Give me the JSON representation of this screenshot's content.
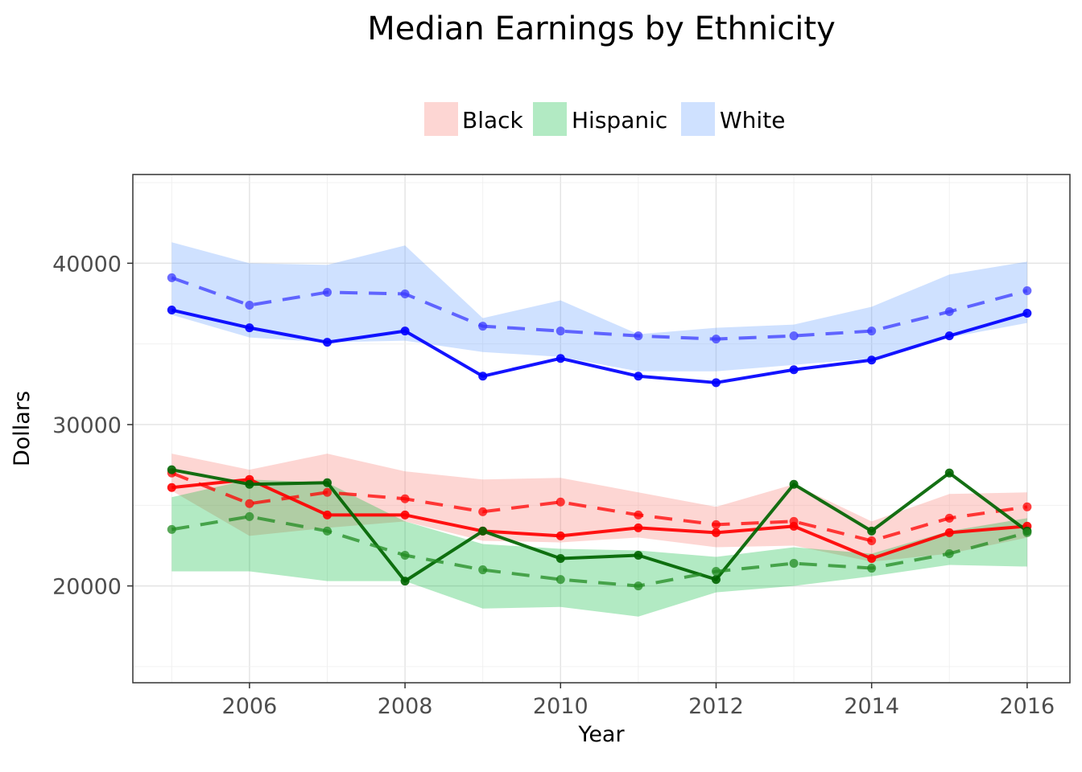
{
  "chart_data": {
    "type": "line",
    "title": "Median Earnings by Ethnicity",
    "xlabel": "Year",
    "ylabel": "Dollars",
    "xlim": [
      2004.5,
      2016.55
    ],
    "ylim": [
      14000,
      45500
    ],
    "x_ticks": [
      2006,
      2008,
      2010,
      2012,
      2014,
      2016
    ],
    "x_tick_labels": [
      "2006",
      "2008",
      "2010",
      "2012",
      "2014",
      "2016"
    ],
    "y_ticks": [
      20000,
      30000,
      40000
    ],
    "y_tick_labels": [
      "20000",
      "30000",
      "40000"
    ],
    "grid": true,
    "legend_position": "top",
    "legend": [
      {
        "label": "Black",
        "fill": "#f8766d"
      },
      {
        "label": "Hispanic",
        "fill": "#00ba38"
      },
      {
        "label": "White",
        "fill": "#619cff"
      }
    ],
    "x": [
      2005,
      2006,
      2007,
      2008,
      2009,
      2010,
      2011,
      2012,
      2013,
      2014,
      2015,
      2016
    ],
    "bands": [
      {
        "group": "Black",
        "fill": "#f8766d",
        "upper": [
          28200,
          27200,
          28200,
          27100,
          26600,
          26700,
          25800,
          24900,
          26300,
          24000,
          25700,
          25800
        ],
        "lower": [
          25900,
          23100,
          23600,
          24000,
          22800,
          22700,
          23000,
          22400,
          22500,
          21500,
          22000,
          23000
        ]
      },
      {
        "group": "Hispanic",
        "fill": "#00ba38",
        "upper": [
          25500,
          26600,
          26400,
          24000,
          22600,
          22300,
          22200,
          21800,
          22400,
          22000,
          23400,
          24200
        ],
        "lower": [
          20900,
          20900,
          20300,
          20300,
          18600,
          18700,
          18100,
          19600,
          20000,
          20600,
          21300,
          21200
        ]
      },
      {
        "group": "White",
        "fill": "#619cff",
        "upper": [
          41300,
          40000,
          39900,
          41100,
          36600,
          37700,
          35600,
          36000,
          36200,
          37300,
          39300,
          40100
        ],
        "lower": [
          36800,
          35400,
          35100,
          35200,
          34500,
          34200,
          33300,
          33300,
          33700,
          34100,
          35400,
          36300
        ]
      }
    ],
    "series": [
      {
        "group": "Black",
        "style": "solid",
        "color": "#ff0000",
        "values": [
          26100,
          26600,
          24400,
          24400,
          23400,
          23100,
          23600,
          23300,
          23700,
          21700,
          23300,
          23700
        ]
      },
      {
        "group": "Black",
        "style": "dashed",
        "color": "#ff0000",
        "values": [
          27000,
          25100,
          25800,
          25400,
          24600,
          25200,
          24400,
          23800,
          24000,
          22800,
          24200,
          24900
        ]
      },
      {
        "group": "Hispanic",
        "style": "solid",
        "color": "#006400",
        "values": [
          27200,
          26300,
          26400,
          20300,
          23400,
          21700,
          21900,
          20400,
          26300,
          23400,
          27000,
          23400
        ]
      },
      {
        "group": "Hispanic",
        "style": "dashed",
        "color": "#228b22",
        "values": [
          23500,
          24300,
          23400,
          21900,
          21000,
          20400,
          20000,
          20900,
          21400,
          21100,
          22000,
          23300
        ]
      },
      {
        "group": "White",
        "style": "solid",
        "color": "#0000ff",
        "values": [
          37100,
          36000,
          35100,
          35800,
          33000,
          34100,
          33000,
          32600,
          33400,
          34000,
          35500,
          36900
        ]
      },
      {
        "group": "White",
        "style": "dashed",
        "color": "#3a3aff",
        "values": [
          39100,
          37400,
          38200,
          38100,
          36100,
          35800,
          35500,
          35300,
          35500,
          35800,
          37000,
          38300
        ]
      }
    ]
  }
}
